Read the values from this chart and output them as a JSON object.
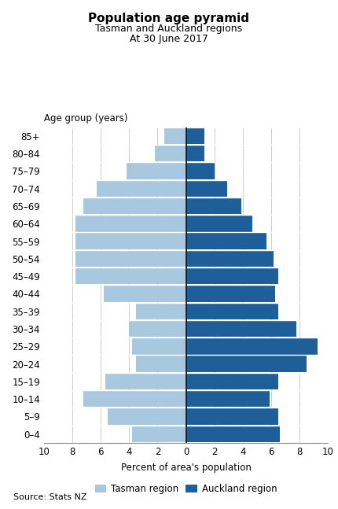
{
  "title": "Population age pyramid",
  "subtitle1": "Tasman and Auckland regions",
  "subtitle2": "At 30 June 2017",
  "age_label": "Age group (years)",
  "xlabel": "Percent of area's population",
  "source": "Source: Stats NZ",
  "legend_tasman": "Tasman region",
  "legend_auckland": "Auckland region",
  "age_groups": [
    "0–4",
    "5–9",
    "10–14",
    "15–19",
    "20–24",
    "25–29",
    "30–34",
    "35–39",
    "40–44",
    "45–49",
    "50–54",
    "55–59",
    "60–64",
    "65–69",
    "70–74",
    "75–79",
    "80–84",
    "85+"
  ],
  "tasman": [
    3.8,
    5.5,
    7.2,
    5.7,
    3.5,
    3.8,
    4.0,
    3.5,
    5.8,
    7.8,
    7.8,
    7.8,
    7.8,
    7.2,
    6.3,
    4.2,
    2.2,
    1.5
  ],
  "auckland": [
    6.6,
    6.5,
    5.9,
    6.5,
    8.5,
    9.3,
    7.8,
    6.5,
    6.3,
    6.5,
    6.2,
    5.7,
    4.7,
    3.9,
    2.9,
    2.0,
    1.3,
    1.3
  ],
  "tasman_color": "#a8c8e0",
  "auckland_color": "#1f5f99",
  "xlim": 10,
  "background_color": "#ffffff",
  "bar_height": 0.92,
  "title_fontsize": 11,
  "subtitle_fontsize": 9,
  "tick_fontsize": 8.5,
  "label_fontsize": 8.5,
  "source_fontsize": 8
}
